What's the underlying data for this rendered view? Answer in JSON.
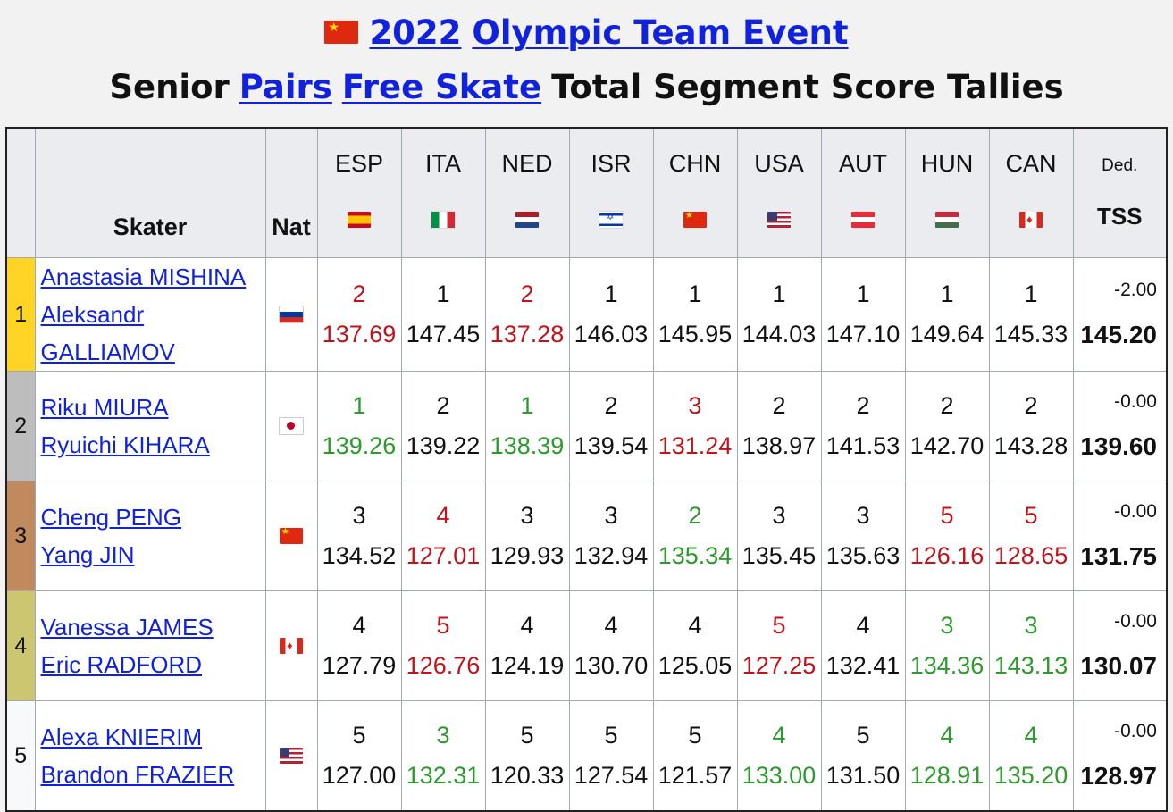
{
  "title": {
    "flag_icon": "china-flag-icon",
    "year": "2022",
    "event": "Olympic Team Event",
    "subtitle_prefix": "Senior",
    "discipline": "Pairs",
    "segment": "Free Skate",
    "subtitle_suffix": "Total Segment Score Tallies"
  },
  "colors": {
    "link": "#1122dd",
    "better": "#2e9a2e",
    "worse": "#c0141c",
    "gold": "#ffd424",
    "silver": "#bdbdbd",
    "bronze": "#c0895e",
    "fourth": "#cdc670"
  },
  "header": {
    "skater": "Skater",
    "nat": "Nat",
    "ded": "Ded.",
    "tss": "TSS",
    "judges": [
      {
        "code": "ESP",
        "flag": "spain-flag-icon"
      },
      {
        "code": "ITA",
        "flag": "italy-flag-icon"
      },
      {
        "code": "NED",
        "flag": "netherlands-flag-icon"
      },
      {
        "code": "ISR",
        "flag": "israel-flag-icon"
      },
      {
        "code": "CHN",
        "flag": "china-flag-icon"
      },
      {
        "code": "USA",
        "flag": "usa-flag-icon"
      },
      {
        "code": "AUT",
        "flag": "austria-flag-icon"
      },
      {
        "code": "HUN",
        "flag": "hungary-flag-icon"
      },
      {
        "code": "CAN",
        "flag": "canada-flag-icon"
      }
    ]
  },
  "rows": [
    {
      "rank": "1",
      "skater1": "Anastasia MISHINA",
      "skater2": "Aleksandr GALLIAMOV",
      "nat_flag": "russia-flag-icon",
      "ded": "-2.00",
      "tss": "145.20",
      "judges": [
        {
          "place": "2",
          "score": "137.69",
          "color": "worse"
        },
        {
          "place": "1",
          "score": "147.45",
          "color": "neutral"
        },
        {
          "place": "2",
          "score": "137.28",
          "color": "worse"
        },
        {
          "place": "1",
          "score": "146.03",
          "color": "neutral"
        },
        {
          "place": "1",
          "score": "145.95",
          "color": "neutral"
        },
        {
          "place": "1",
          "score": "144.03",
          "color": "neutral"
        },
        {
          "place": "1",
          "score": "147.10",
          "color": "neutral"
        },
        {
          "place": "1",
          "score": "149.64",
          "color": "neutral"
        },
        {
          "place": "1",
          "score": "145.33",
          "color": "neutral"
        }
      ]
    },
    {
      "rank": "2",
      "skater1": "Riku MIURA",
      "skater2": "Ryuichi KIHARA",
      "nat_flag": "japan-flag-icon",
      "ded": "-0.00",
      "tss": "139.60",
      "judges": [
        {
          "place": "1",
          "score": "139.26",
          "color": "better"
        },
        {
          "place": "2",
          "score": "139.22",
          "color": "neutral"
        },
        {
          "place": "1",
          "score": "138.39",
          "color": "better"
        },
        {
          "place": "2",
          "score": "139.54",
          "color": "neutral"
        },
        {
          "place": "3",
          "score": "131.24",
          "color": "worse"
        },
        {
          "place": "2",
          "score": "138.97",
          "color": "neutral"
        },
        {
          "place": "2",
          "score": "141.53",
          "color": "neutral"
        },
        {
          "place": "2",
          "score": "142.70",
          "color": "neutral"
        },
        {
          "place": "2",
          "score": "143.28",
          "color": "neutral"
        }
      ]
    },
    {
      "rank": "3",
      "skater1": "Cheng PENG",
      "skater2": "Yang JIN",
      "nat_flag": "china-flag-icon",
      "ded": "-0.00",
      "tss": "131.75",
      "judges": [
        {
          "place": "3",
          "score": "134.52",
          "color": "neutral"
        },
        {
          "place": "4",
          "score": "127.01",
          "color": "worse"
        },
        {
          "place": "3",
          "score": "129.93",
          "color": "neutral"
        },
        {
          "place": "3",
          "score": "132.94",
          "color": "neutral"
        },
        {
          "place": "2",
          "score": "135.34",
          "color": "better"
        },
        {
          "place": "3",
          "score": "135.45",
          "color": "neutral"
        },
        {
          "place": "3",
          "score": "135.63",
          "color": "neutral"
        },
        {
          "place": "5",
          "score": "126.16",
          "color": "worse"
        },
        {
          "place": "5",
          "score": "128.65",
          "color": "worse"
        }
      ]
    },
    {
      "rank": "4",
      "skater1": "Vanessa JAMES",
      "skater2": "Eric RADFORD",
      "nat_flag": "canada-flag-icon",
      "ded": "-0.00",
      "tss": "130.07",
      "judges": [
        {
          "place": "4",
          "score": "127.79",
          "color": "neutral"
        },
        {
          "place": "5",
          "score": "126.76",
          "color": "worse"
        },
        {
          "place": "4",
          "score": "124.19",
          "color": "neutral"
        },
        {
          "place": "4",
          "score": "130.70",
          "color": "neutral"
        },
        {
          "place": "4",
          "score": "125.05",
          "color": "neutral"
        },
        {
          "place": "5",
          "score": "127.25",
          "color": "worse"
        },
        {
          "place": "4",
          "score": "132.41",
          "color": "neutral"
        },
        {
          "place": "3",
          "score": "134.36",
          "color": "better"
        },
        {
          "place": "3",
          "score": "143.13",
          "color": "better"
        }
      ]
    },
    {
      "rank": "5",
      "skater1": "Alexa KNIERIM",
      "skater2": "Brandon FRAZIER",
      "nat_flag": "usa-flag-icon",
      "ded": "-0.00",
      "tss": "128.97",
      "judges": [
        {
          "place": "5",
          "score": "127.00",
          "color": "neutral"
        },
        {
          "place": "3",
          "score": "132.31",
          "color": "better"
        },
        {
          "place": "5",
          "score": "120.33",
          "color": "neutral"
        },
        {
          "place": "5",
          "score": "127.54",
          "color": "neutral"
        },
        {
          "place": "5",
          "score": "121.57",
          "color": "neutral"
        },
        {
          "place": "4",
          "score": "133.00",
          "color": "better"
        },
        {
          "place": "5",
          "score": "131.50",
          "color": "neutral"
        },
        {
          "place": "4",
          "score": "128.91",
          "color": "better"
        },
        {
          "place": "4",
          "score": "135.20",
          "color": "better"
        }
      ]
    }
  ]
}
